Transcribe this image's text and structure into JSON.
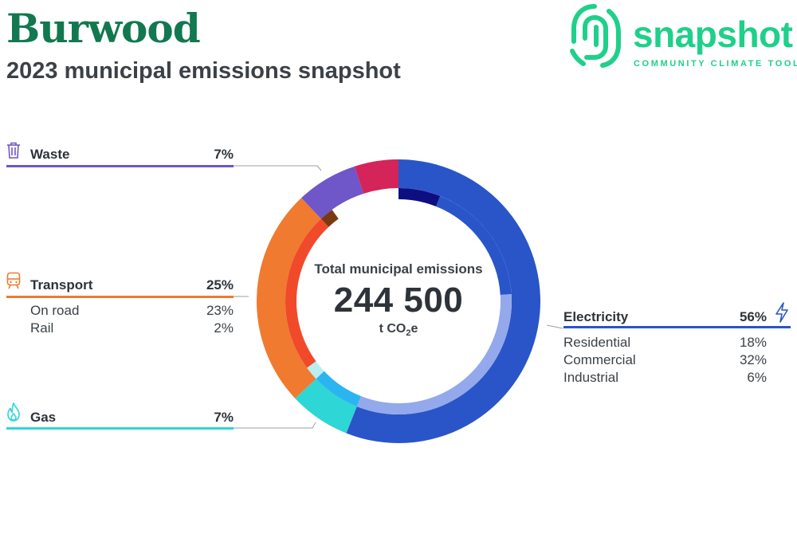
{
  "header": {
    "title": "Burwood",
    "subtitle": "2023 municipal emissions snapshot"
  },
  "logo": {
    "wordmark": "snapshot",
    "tagline": "COMMUNITY CLIMATE TOOL",
    "color": "#1fd08a"
  },
  "center": {
    "label": "Total municipal emissions",
    "total": "244 500",
    "unit_prefix": "t CO",
    "unit_sub": "2",
    "unit_suffix": "e"
  },
  "categories": {
    "waste": {
      "label": "Waste",
      "pct": "7%",
      "color": "#6f56c9",
      "icon": "trash-icon"
    },
    "transport": {
      "label": "Transport",
      "pct": "25%",
      "color": "#f07a2f",
      "icon": "train-icon",
      "subs": [
        {
          "label": "On road",
          "pct": "23%"
        },
        {
          "label": "Rail",
          "pct": "2%"
        }
      ]
    },
    "gas": {
      "label": "Gas",
      "pct": "7%",
      "color": "#2fd6d6",
      "icon": "flame-icon"
    },
    "electricity": {
      "label": "Electricity",
      "pct": "56%",
      "color": "#2a55c8",
      "icon": "lightning-icon",
      "subs": [
        {
          "label": "Residential",
          "pct": "18%"
        },
        {
          "label": "Commercial",
          "pct": "32%"
        },
        {
          "label": "Industrial",
          "pct": "6%"
        }
      ]
    }
  },
  "chart_data": {
    "type": "pie",
    "title": "Total municipal emissions",
    "total": 244500,
    "unit": "t CO2e",
    "outer_ring": [
      {
        "name": "Electricity",
        "value": 56,
        "color": "#2a55c8"
      },
      {
        "name": "Gas",
        "value": 7,
        "color": "#2fd6d6"
      },
      {
        "name": "Transport",
        "value": 25,
        "color": "#f07a2f"
      },
      {
        "name": "Waste",
        "value": 7,
        "color": "#6f56c9"
      },
      {
        "name": "",
        "value": 5,
        "color": "#d4245a"
      }
    ],
    "inner_ring": [
      {
        "name": "Industrial",
        "value": 6,
        "color": "#0d0f80"
      },
      {
        "name": "Residential",
        "value": 18,
        "color": "#2a55c8"
      },
      {
        "name": "Commercial",
        "value": 32,
        "color": "#93a9ec"
      },
      {
        "name": "",
        "value": 0,
        "color": "#ffffff"
      },
      {
        "name": "Gas",
        "value": 7,
        "color": "#2bb5f0"
      },
      {
        "name": "",
        "value": 0,
        "color": "#ffffff"
      },
      {
        "name": "",
        "value": 0,
        "color": "#ffffff"
      },
      {
        "name": "Rail",
        "value": 2,
        "color": "#b8eef0"
      },
      {
        "name": "On road",
        "value": 23,
        "color": "#f04a2a"
      },
      {
        "name": "",
        "value": 2,
        "color": "#7a3a10"
      },
      {
        "name": "",
        "value": 10,
        "color": "#ffffff"
      }
    ]
  }
}
